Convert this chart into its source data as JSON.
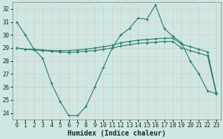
{
  "bg_color": "#cde8e2",
  "grid_color": "#e8c8c8",
  "line_color": "#2a7a6e",
  "x": [
    0,
    1,
    2,
    3,
    4,
    5,
    6,
    7,
    8,
    9,
    10,
    11,
    12,
    13,
    14,
    15,
    16,
    17,
    18,
    19,
    20,
    21,
    22,
    23
  ],
  "series1": [
    31.0,
    30.0,
    28.9,
    28.2,
    26.3,
    24.9,
    23.8,
    23.8,
    24.5,
    26.0,
    27.5,
    29.0,
    30.0,
    30.5,
    31.3,
    31.2,
    32.3,
    30.5,
    29.9,
    29.4,
    28.0,
    27.0,
    25.7,
    25.5
  ],
  "series2": [
    29.0,
    28.9,
    28.9,
    28.85,
    28.8,
    28.8,
    28.8,
    28.85,
    28.9,
    29.0,
    29.1,
    29.2,
    29.4,
    29.5,
    29.6,
    29.65,
    29.7,
    29.75,
    29.75,
    29.3,
    29.1,
    28.9,
    28.7,
    25.6
  ],
  "series3": [
    29.0,
    28.9,
    28.85,
    28.8,
    28.75,
    28.7,
    28.65,
    28.7,
    28.75,
    28.8,
    28.9,
    29.0,
    29.15,
    29.25,
    29.35,
    29.4,
    29.45,
    29.5,
    29.5,
    29.0,
    28.8,
    28.6,
    28.4,
    25.5
  ],
  "ylim": [
    23.5,
    32.5
  ],
  "yticks": [
    24,
    25,
    26,
    27,
    28,
    29,
    30,
    31,
    32
  ],
  "xlim": [
    -0.5,
    23.5
  ],
  "xlabel": "Humidex (Indice chaleur)",
  "xlabel_fontsize": 7,
  "tick_fontsize": 6
}
